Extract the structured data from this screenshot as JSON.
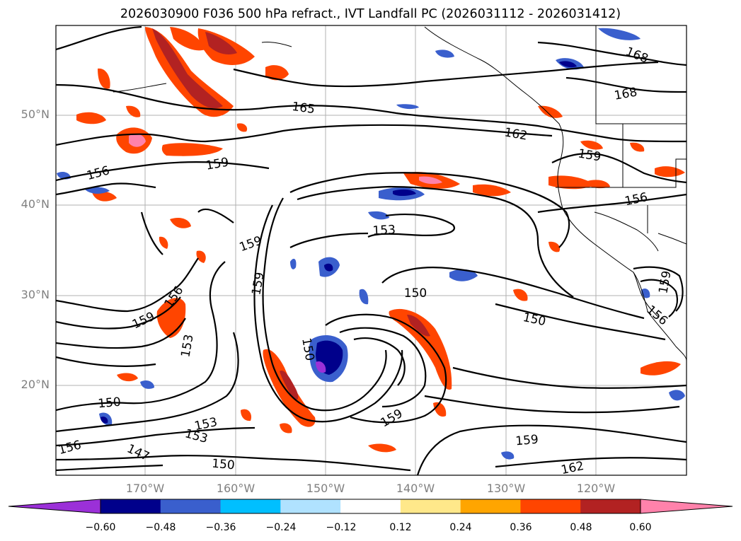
{
  "title": "2026030900 F036 500 hPa refract., IVT Landfall PC (2026031112 - 2026031412)",
  "map": {
    "lat_labels": [
      "50°N",
      "40°N",
      "30°N",
      "20°N"
    ],
    "lon_labels": [
      "170°W",
      "160°W",
      "150°W",
      "140°W",
      "130°W",
      "120°W"
    ],
    "contour_labels": [
      "168",
      "168",
      "165",
      "162",
      "159",
      "159",
      "156",
      "156",
      "153",
      "159",
      "159",
      "150",
      "150",
      "156",
      "159",
      "153",
      "150",
      "150",
      "153",
      "153",
      "159",
      "159",
      "156",
      "147",
      "150",
      "162",
      "159",
      "156"
    ],
    "grid": true,
    "features": [
      "black geopotential height contours",
      "coastlines",
      "state/national borders",
      "filled refractivity anomaly shading"
    ]
  },
  "colorbar": {
    "tick_labels": [
      "−0.60",
      "−0.48",
      "−0.36",
      "−0.24",
      "−0.12",
      "0.12",
      "0.24",
      "0.36",
      "0.48",
      "0.60"
    ],
    "colors": [
      "#9b30d8",
      "#00008b",
      "#3a5fcd",
      "#00bfff",
      "#b0e2ff",
      "#ffffff",
      "#ffe88a",
      "#ffa500",
      "#ff4500",
      "#b22222",
      "#ff82ab"
    ],
    "extend": "both"
  }
}
